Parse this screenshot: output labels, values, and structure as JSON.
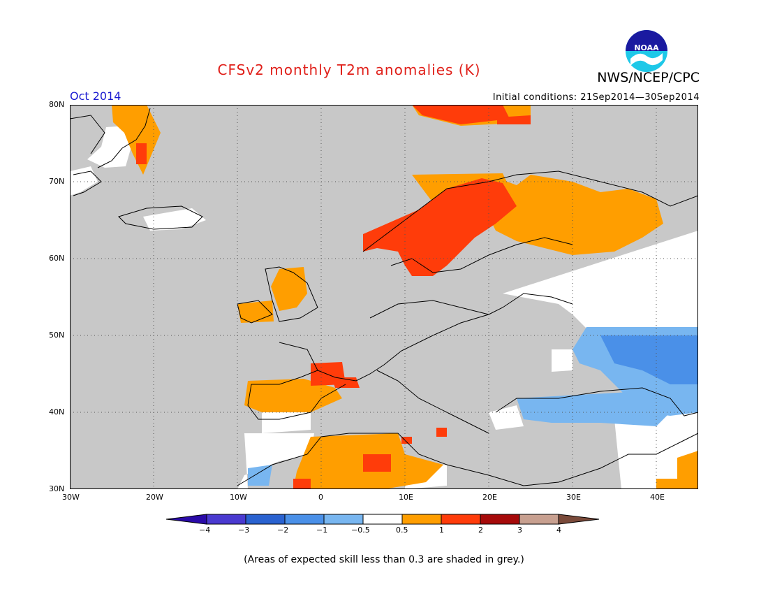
{
  "header": {
    "title": "CFSv2 monthly T2m anomalies (K)",
    "agency": "NWS/NCEP/CPC",
    "logo_text": "NOAA",
    "month": "Oct 2014",
    "initial_conditions": "Initial conditions: 21Sep2014—30Sep2014"
  },
  "map": {
    "lon_range": [
      -30,
      45
    ],
    "lat_range": [
      30,
      80
    ],
    "lon_ticks": [
      "30W",
      "20W",
      "10W",
      "0",
      "10E",
      "20E",
      "30E",
      "40E"
    ],
    "lat_ticks": [
      "80N",
      "70N",
      "60N",
      "50N",
      "40N",
      "30N"
    ],
    "ocean_color": "#c8c8c8",
    "grid": "dotted"
  },
  "legend": {
    "bins": [
      {
        "color": "#2a0aa8"
      },
      {
        "color": "#4a3ad0"
      },
      {
        "color": "#2a62d0"
      },
      {
        "color": "#4a90e8"
      },
      {
        "color": "#78b6f0"
      },
      {
        "color": "#ffffff"
      },
      {
        "color": "#ff9e00"
      },
      {
        "color": "#ff3c0a"
      },
      {
        "color": "#a60a0a"
      },
      {
        "color": "#c8a090"
      },
      {
        "color": "#7a4a3a"
      }
    ],
    "tick_labels": [
      "−4",
      "−3",
      "−2",
      "−1",
      "−0.5",
      "0.5",
      "1",
      "2",
      "3",
      "4"
    ]
  },
  "footnote": "(Areas of expected skill less than 0.3 are shaded in grey.)"
}
